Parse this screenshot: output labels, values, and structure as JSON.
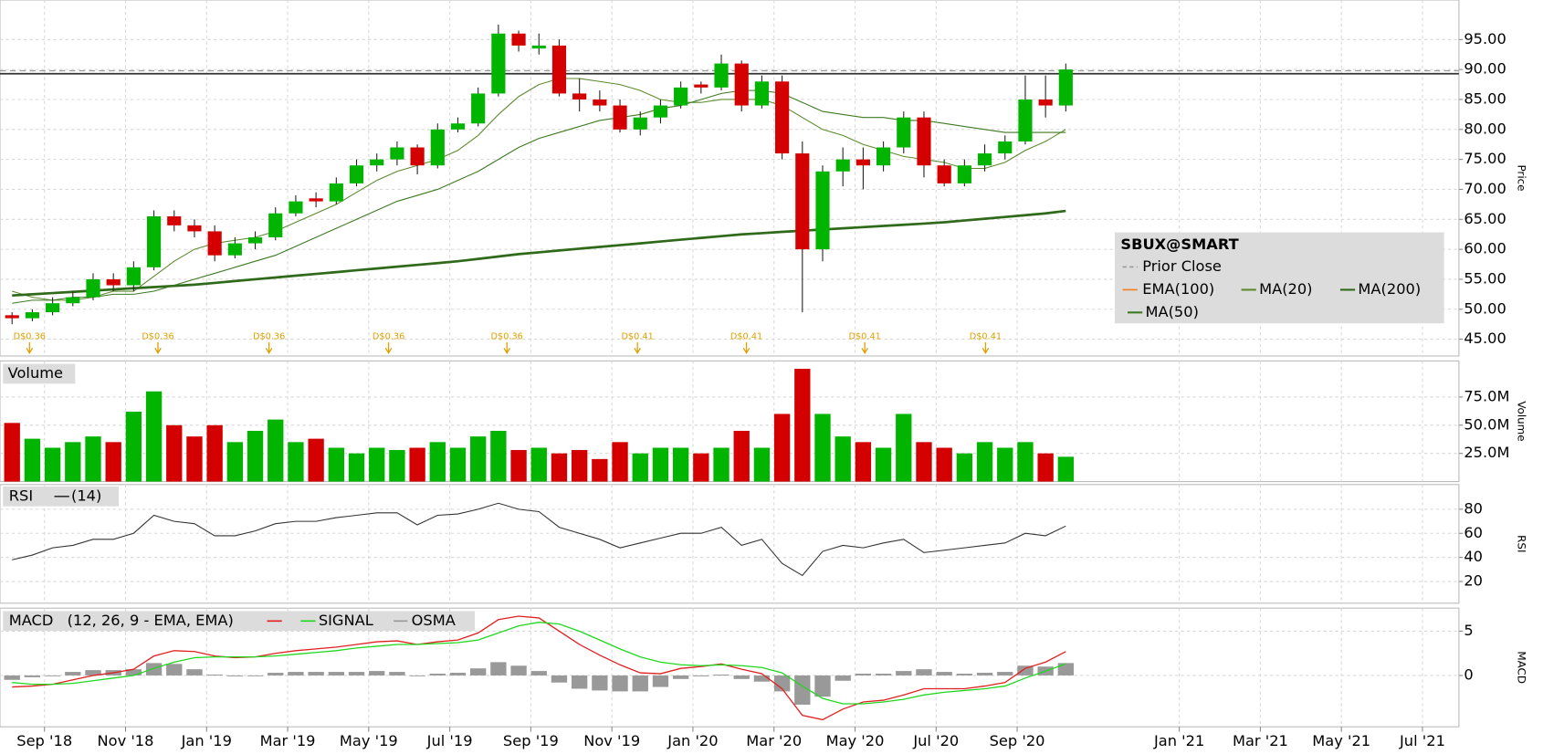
{
  "chart_data": [
    {
      "type": "candlestick",
      "axis_label": "Price",
      "legend_title": "SBUX@SMART",
      "grid": true,
      "up_color": "#00b400",
      "down_color": "#d40000",
      "xlim": [
        0,
        35.9
      ],
      "xticks": [
        {
          "value": 1,
          "label": "Sep '18"
        },
        {
          "value": 3,
          "label": "Nov '18"
        },
        {
          "value": 5,
          "label": "Jan '19"
        },
        {
          "value": 7,
          "label": "Mar '19"
        },
        {
          "value": 9,
          "label": "May '19"
        },
        {
          "value": 11,
          "label": "Jul '19"
        },
        {
          "value": 13,
          "label": "Sep '19"
        },
        {
          "value": 15,
          "label": "Nov '19"
        },
        {
          "value": 17,
          "label": "Jan '20"
        },
        {
          "value": 19,
          "label": "Mar '20"
        },
        {
          "value": 21,
          "label": "May '20"
        },
        {
          "value": 23,
          "label": "Jul '20"
        },
        {
          "value": 25,
          "label": "Sep '20"
        },
        {
          "value": 29,
          "label": "Jan '21"
        },
        {
          "value": 31,
          "label": "Mar '21"
        },
        {
          "value": 33,
          "label": "May '21"
        },
        {
          "value": 35,
          "label": "Jul '21"
        }
      ],
      "x": [
        0.2,
        0.7,
        1.2,
        1.7,
        2.2,
        2.7,
        3.2,
        3.7,
        4.2,
        4.7,
        5.2,
        5.7,
        6.2,
        6.7,
        7.2,
        7.7,
        8.2,
        8.7,
        9.2,
        9.7,
        10.2,
        10.7,
        11.2,
        11.7,
        12.2,
        12.7,
        13.2,
        13.7,
        14.2,
        14.7,
        15.2,
        15.7,
        16.2,
        16.7,
        17.2,
        17.7,
        18.2,
        18.7,
        19.2,
        19.7,
        20.2,
        20.7,
        21.2,
        21.7,
        22.2,
        22.7,
        23.2,
        23.7,
        24.2,
        24.7,
        25.2,
        25.7,
        26.2
      ],
      "ylim": [
        42.2,
        101.6
      ],
      "yticks": [
        {
          "value": 45,
          "label": "45.00"
        },
        {
          "value": 50,
          "label": "50.00"
        },
        {
          "value": 55,
          "label": "55.00"
        },
        {
          "value": 60,
          "label": "60.00"
        },
        {
          "value": 65,
          "label": "65.00"
        },
        {
          "value": 70,
          "label": "70.00"
        },
        {
          "value": 75,
          "label": "75.00"
        },
        {
          "value": 80,
          "label": "80.00"
        },
        {
          "value": 85,
          "label": "85.00"
        },
        {
          "value": 90,
          "label": "90.00"
        },
        {
          "value": 95,
          "label": "95.00"
        }
      ],
      "candles": [
        [
          49,
          49.5,
          47.5,
          48.5
        ],
        [
          48.5,
          50,
          48,
          49.5
        ],
        [
          49.5,
          52,
          49,
          51
        ],
        [
          51,
          53,
          50.5,
          52
        ],
        [
          52,
          56,
          51.5,
          55
        ],
        [
          55,
          56,
          53,
          54
        ],
        [
          54,
          58,
          53,
          57
        ],
        [
          57,
          66.5,
          56.5,
          65.5
        ],
        [
          65.5,
          66.5,
          63,
          64
        ],
        [
          64,
          65,
          62,
          63
        ],
        [
          63,
          64,
          58,
          59
        ],
        [
          59,
          62,
          58.5,
          61
        ],
        [
          61,
          63,
          60,
          62
        ],
        [
          62,
          67,
          61.5,
          66
        ],
        [
          66,
          69,
          65.5,
          68
        ],
        [
          68.5,
          69.5,
          67,
          68
        ],
        [
          68,
          72,
          67.5,
          71
        ],
        [
          71,
          75,
          70.5,
          74
        ],
        [
          74,
          76,
          73,
          75
        ],
        [
          75,
          78,
          74,
          77
        ],
        [
          77,
          77.5,
          72.5,
          74
        ],
        [
          74,
          81,
          73.5,
          80
        ],
        [
          80,
          82,
          79.5,
          81
        ],
        [
          81,
          87,
          80.5,
          86
        ],
        [
          86,
          97.5,
          85.5,
          96
        ],
        [
          96,
          96.5,
          93,
          94
        ],
        [
          93.5,
          96,
          92.5,
          94
        ],
        [
          94,
          95,
          85.5,
          86
        ],
        [
          86,
          88.5,
          83,
          85
        ],
        [
          85,
          86.5,
          83,
          84
        ],
        [
          84,
          85,
          79.5,
          80
        ],
        [
          80,
          83,
          79,
          82
        ],
        [
          82,
          85,
          81,
          84
        ],
        [
          84,
          88,
          83.5,
          87
        ],
        [
          87.5,
          88,
          86,
          87
        ],
        [
          87,
          92.5,
          86.5,
          91
        ],
        [
          91,
          91.5,
          83,
          84
        ],
        [
          84,
          89,
          83.5,
          88
        ],
        [
          88,
          89,
          75,
          76
        ],
        [
          76,
          78,
          49.5,
          60
        ],
        [
          60,
          74,
          58,
          73
        ],
        [
          73,
          77,
          70.5,
          75
        ],
        [
          75,
          77,
          70,
          74
        ],
        [
          74,
          78,
          73,
          77
        ],
        [
          77,
          83,
          76,
          82
        ],
        [
          82,
          83,
          72,
          74
        ],
        [
          74,
          75,
          70.5,
          71
        ],
        [
          71,
          75,
          70.5,
          74
        ],
        [
          74,
          77.5,
          73,
          76
        ],
        [
          76,
          79,
          75,
          78
        ],
        [
          78,
          89,
          77.5,
          85
        ],
        [
          85,
          89,
          82,
          84
        ],
        [
          84,
          91,
          83,
          90
        ]
      ],
      "series": [
        {
          "name": "MA(20)",
          "color": "#5c8a2e",
          "width": 1,
          "values": [
            53,
            52,
            51.5,
            51.5,
            52,
            53,
            53,
            55.5,
            58,
            60,
            61,
            61.5,
            62,
            63,
            64.5,
            66,
            67.5,
            69.5,
            71.5,
            73,
            74,
            75,
            76.5,
            79,
            82.5,
            85.5,
            87.5,
            88.5,
            88.5,
            88,
            87.5,
            86.5,
            85,
            84.5,
            84.5,
            85,
            85,
            85,
            84,
            82,
            80,
            79,
            77.5,
            76.5,
            75.5,
            75,
            74.5,
            73.5,
            73.5,
            74.5,
            76.5,
            78,
            80
          ]
        },
        {
          "name": "MA(200)",
          "color": "#2f6a1a",
          "width": 2.5,
          "values": [
            52.3,
            52.5,
            52.7,
            52.9,
            53.1,
            53.3,
            53.5,
            53.7,
            53.9,
            54.1,
            54.4,
            54.7,
            55,
            55.3,
            55.6,
            55.9,
            56.2,
            56.5,
            56.8,
            57.1,
            57.4,
            57.7,
            58,
            58.4,
            58.8,
            59.2,
            59.5,
            59.8,
            60.1,
            60.4,
            60.7,
            61,
            61.3,
            61.6,
            61.9,
            62.2,
            62.5,
            62.7,
            62.9,
            63.1,
            63.3,
            63.5,
            63.7,
            63.9,
            64.1,
            64.3,
            64.5,
            64.8,
            65.1,
            65.4,
            65.7,
            66,
            66.4
          ]
        },
        {
          "name": "MA(50)",
          "color": "#3d7a22",
          "width": 1,
          "values": [
            51,
            51.5,
            51.5,
            52,
            52,
            52.5,
            52.5,
            53,
            54,
            55,
            56,
            57,
            58,
            59,
            60.5,
            62,
            63.5,
            65,
            66.5,
            68,
            69,
            70,
            71.5,
            73,
            75,
            77,
            78.5,
            79.5,
            80.5,
            81.5,
            82,
            82.5,
            83.5,
            84,
            85,
            86,
            86.5,
            86.5,
            86,
            84.5,
            83,
            82.5,
            82,
            82,
            81.5,
            81.5,
            81,
            80.5,
            80,
            79.5,
            79.5,
            79.5,
            79.5
          ]
        }
      ],
      "prior_close": {
        "name": "Prior Close",
        "color": "#999999",
        "value": 89.8
      },
      "ema": {
        "name": "EMA(100)",
        "color": "#f08020"
      },
      "last_price": 89.3,
      "annotations": [
        {
          "x": 0.63,
          "label": "D$0.36"
        },
        {
          "x": 3.8,
          "label": "D$0.36"
        },
        {
          "x": 6.54,
          "label": "D$0.36"
        },
        {
          "x": 9.49,
          "label": "D$0.36"
        },
        {
          "x": 12.41,
          "label": "D$0.36"
        },
        {
          "x": 15.63,
          "label": "D$0.41"
        },
        {
          "x": 18.32,
          "label": "D$0.41"
        },
        {
          "x": 21.24,
          "label": "D$0.41"
        },
        {
          "x": 24.22,
          "label": "D$0.41"
        }
      ]
    },
    {
      "type": "bar",
      "title": "Volume",
      "axis_label": "Volume",
      "grid": true,
      "ylim": [
        0,
        107
      ],
      "yticks": [
        {
          "value": 25,
          "label": "25.0M"
        },
        {
          "value": 50,
          "label": "50.0M"
        },
        {
          "value": 75,
          "label": "75.0M"
        }
      ],
      "values": [
        52,
        38,
        30,
        35,
        40,
        35,
        62,
        80,
        50,
        40,
        50,
        35,
        45,
        55,
        35,
        38,
        30,
        25,
        30,
        28,
        30,
        35,
        30,
        40,
        45,
        28,
        30,
        25,
        28,
        20,
        35,
        25,
        30,
        30,
        25,
        30,
        45,
        30,
        60,
        100,
        60,
        40,
        35,
        30,
        60,
        35,
        30,
        25,
        35,
        30,
        35,
        25,
        22
      ]
    },
    {
      "type": "line",
      "title": "RSI",
      "axis_label": "RSI",
      "grid": true,
      "ylim": [
        2,
        100.5
      ],
      "yticks": [
        20,
        40,
        60,
        80
      ],
      "series": [
        {
          "name": "(14)",
          "color": "#333333",
          "values": [
            38,
            42,
            48,
            50,
            55,
            55,
            60,
            75,
            70,
            68,
            58,
            58,
            62,
            68,
            70,
            70,
            73,
            75,
            77,
            77,
            67,
            75,
            76,
            80,
            85,
            80,
            78,
            65,
            60,
            55,
            48,
            52,
            56,
            60,
            60,
            65,
            50,
            55,
            35,
            25,
            45,
            50,
            48,
            52,
            55,
            44,
            46,
            48,
            50,
            52,
            60,
            58,
            66
          ]
        }
      ]
    },
    {
      "type": "macd",
      "title": "MACD",
      "axis_label": "MACD",
      "grid": true,
      "ylim": [
        -5.8,
        7.6
      ],
      "yticks": [
        0,
        5
      ],
      "series": [
        {
          "name": "(12, 26, 9 - EMA, EMA)",
          "color": "#e02020",
          "values": [
            -1.3,
            -1.2,
            -1,
            -0.5,
            0,
            0.3,
            0.7,
            2.2,
            2.8,
            2.7,
            2.2,
            2,
            2.1,
            2.5,
            2.8,
            3,
            3.2,
            3.5,
            3.8,
            3.9,
            3.5,
            3.8,
            4,
            4.8,
            6.3,
            6.7,
            6.5,
            5,
            3.5,
            2.3,
            1.2,
            0.3,
            0.2,
            0.8,
            1,
            1.3,
            0.7,
            0.2,
            -1.5,
            -4.5,
            -5,
            -3.8,
            -3,
            -2.8,
            -2.2,
            -1.5,
            -1.5,
            -1.5,
            -1.2,
            -0.8,
            0.8,
            1.5,
            2.7
          ]
        },
        {
          "name": "SIGNAL",
          "color": "#20d820",
          "values": [
            -0.8,
            -1,
            -1,
            -0.9,
            -0.6,
            -0.3,
            0,
            0.8,
            1.5,
            2,
            2.1,
            2.1,
            2.1,
            2.2,
            2.4,
            2.6,
            2.8,
            3.1,
            3.3,
            3.5,
            3.5,
            3.6,
            3.7,
            4,
            4.8,
            5.6,
            6,
            5.8,
            5,
            4,
            3,
            2.1,
            1.5,
            1.2,
            1.1,
            1.2,
            1.1,
            0.9,
            0.3,
            -1.2,
            -2.6,
            -3.2,
            -3.2,
            -3,
            -2.7,
            -2.2,
            -1.9,
            -1.7,
            -1.5,
            -1.2,
            -0.3,
            0.5,
            1.3
          ]
        },
        {
          "name": "OSMA",
          "color": "#999999",
          "kind": "bar",
          "values": [
            -0.5,
            -0.2,
            0,
            0.4,
            0.6,
            0.6,
            0.7,
            1.4,
            1.3,
            0.7,
            0.1,
            -0.1,
            0,
            0.3,
            0.4,
            0.4,
            0.4,
            0.4,
            0.5,
            0.4,
            0,
            0.2,
            0.3,
            0.8,
            1.5,
            1.1,
            0.5,
            -0.8,
            -1.5,
            -1.7,
            -1.8,
            -1.8,
            -1.3,
            -0.4,
            -0.1,
            0.1,
            -0.4,
            -0.7,
            -1.8,
            -3.3,
            -2.4,
            -0.6,
            0.2,
            0.2,
            0.5,
            0.7,
            0.4,
            0.2,
            0.3,
            0.4,
            1.1,
            1,
            1.4
          ]
        }
      ]
    }
  ]
}
